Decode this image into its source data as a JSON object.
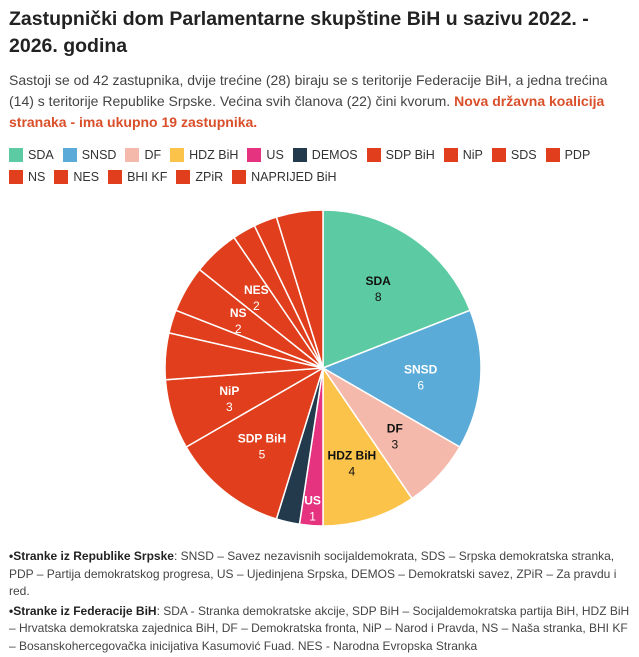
{
  "header": {
    "title": "Zastupnički dom Parlamentarne skupštine BiH u sazivu 2022. - 2026. godina",
    "intro": "Sastoji se od 42 zastupnika, dvije trećine (28) biraju se s teritorije Federacije BiH, a jedna trećina (14) s teritorije Republike Srpske. Većina svih članova (22) čini kvorum.",
    "intro_highlight": "Nova državna koalicija stranaka - ima ukupno 19 zastupnika."
  },
  "chart_data": {
    "type": "pie",
    "title": "",
    "slices": [
      {
        "name": "SDA",
        "value": 8,
        "color": "#5ccba3",
        "show_label": true
      },
      {
        "name": "SNSD",
        "value": 6,
        "color": "#5aabd8",
        "show_label": true
      },
      {
        "name": "DF",
        "value": 3,
        "color": "#f4b9ab",
        "show_label": true
      },
      {
        "name": "HDZ BiH",
        "value": 4,
        "color": "#fcc34b",
        "show_label": true
      },
      {
        "name": "US",
        "value": 1,
        "color": "#e5337f",
        "show_label": true
      },
      {
        "name": "DEMOS",
        "value": 1,
        "color": "#223a4c",
        "show_label": false
      },
      {
        "name": "SDP BiH",
        "value": 5,
        "color": "#e03e1c",
        "show_label": true
      },
      {
        "name": "NiP",
        "value": 3,
        "color": "#e03e1c",
        "show_label": true
      },
      {
        "name": "SDS",
        "value": 2,
        "color": "#e03e1c",
        "show_label": false
      },
      {
        "name": "PDP",
        "value": 1,
        "color": "#e03e1c",
        "show_label": false
      },
      {
        "name": "NS",
        "value": 2,
        "color": "#e03e1c",
        "show_label": true
      },
      {
        "name": "NES",
        "value": 2,
        "color": "#e03e1c",
        "show_label": true
      },
      {
        "name": "BHI KF",
        "value": 1,
        "color": "#e03e1c",
        "show_label": false
      },
      {
        "name": "ZPiR",
        "value": 1,
        "color": "#e03e1c",
        "show_label": false
      },
      {
        "name": "NAPRIJED BiH",
        "value": 2,
        "color": "#e03e1c",
        "show_label": false
      }
    ],
    "legend": [
      {
        "name": "SDA",
        "color": "#5ccba3"
      },
      {
        "name": "SNSD",
        "color": "#5aabd8"
      },
      {
        "name": "DF",
        "color": "#f4b9ab"
      },
      {
        "name": "HDZ BiH",
        "color": "#fcc34b"
      },
      {
        "name": "US",
        "color": "#e5337f"
      },
      {
        "name": "DEMOS",
        "color": "#223a4c"
      },
      {
        "name": "SDP BiH",
        "color": "#e03e1c"
      },
      {
        "name": "NiP",
        "color": "#e03e1c"
      },
      {
        "name": "SDS",
        "color": "#e03e1c"
      },
      {
        "name": "PDP",
        "color": "#e03e1c"
      },
      {
        "name": "NS",
        "color": "#e03e1c"
      },
      {
        "name": "NES",
        "color": "#e03e1c"
      },
      {
        "name": "BHI KF",
        "color": "#e03e1c"
      },
      {
        "name": "ZPiR",
        "color": "#e03e1c"
      },
      {
        "name": "NAPRIJED BiH",
        "color": "#e03e1c"
      }
    ],
    "legend_position": "top"
  },
  "notes": {
    "rs_label": "•Stranke iz Republike Srpske",
    "rs_text": ": SNSD – Savez nezavisnih socijaldemokrata, SDS – Srpska demokratska stranka, PDP – Partija demokratskog progresa, US – Ujedinjena Srpska, DEMOS – Demokratski savez, ZPiR – Za pravdu i red.",
    "fbih_label": "•Stranke iz Federacije BiH",
    "fbih_text": ": SDA - Stranka demokratske akcije, SDP BiH – Socijaldemokratska partija BiH, HDZ BiH – Hrvatska demokratska zajednica BiH, DF – Demokratska fronta, NiP – Narod i Pravda, NS – Naša stranka, BHI KF – Bosanskohercegovačka inicijativa Kasumović Fuad. NES - Narodna Evropska Stranka"
  }
}
